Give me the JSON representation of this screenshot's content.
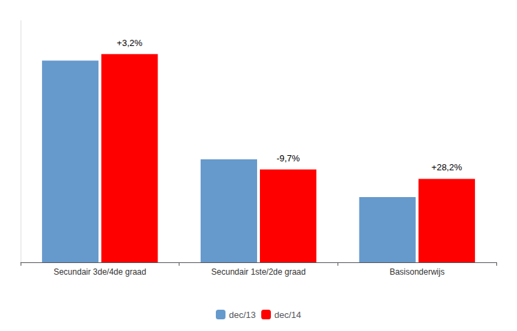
{
  "chart_data": {
    "type": "bar",
    "categories": [
      "Secundair 3de/4de graad",
      "Secundair 1ste/2de graad",
      "Basisonderwijs"
    ],
    "series": [
      {
        "name": "dec/13",
        "color": "#6699CC",
        "values": [
          960,
          490,
          310
        ]
      },
      {
        "name": "dec/14",
        "color": "#FF0000",
        "values": [
          991,
          442,
          397
        ]
      }
    ],
    "annotations": [
      "+3,2%",
      "-9,7%",
      "+28,2%"
    ],
    "ylim": [
      0,
      1150
    ],
    "grid": false,
    "legend": "bottom",
    "tick_labels": "x"
  }
}
